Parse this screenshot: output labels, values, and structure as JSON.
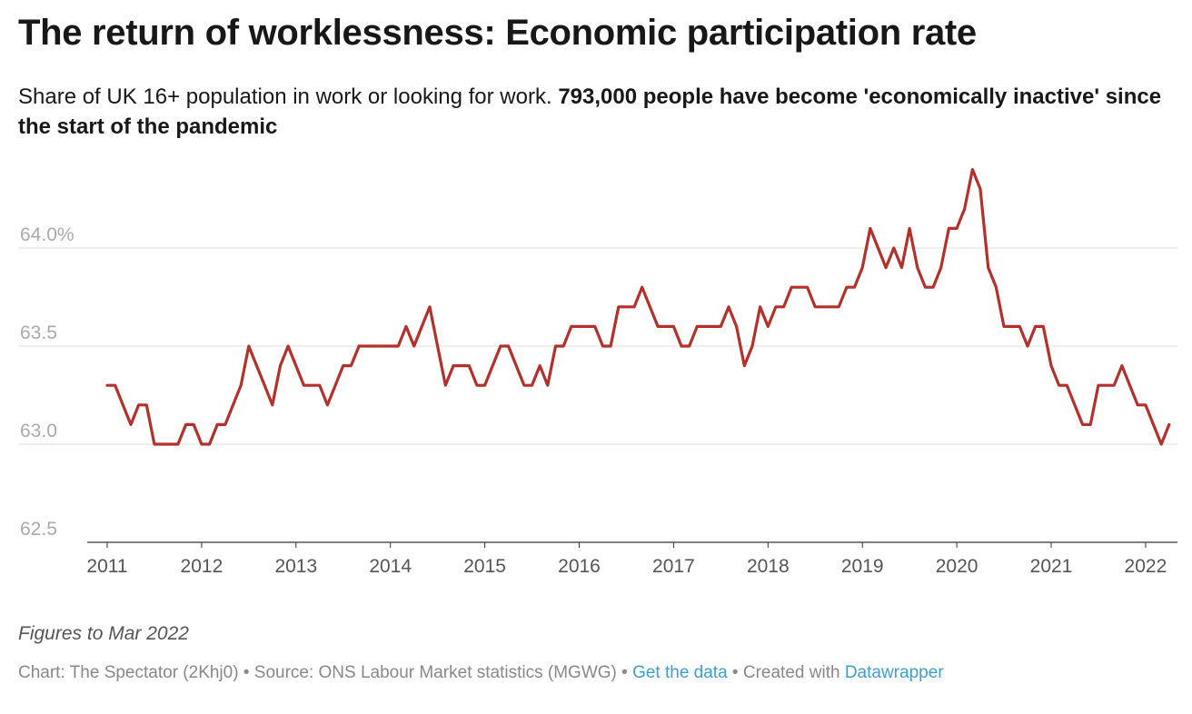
{
  "header": {
    "title": "The return of worklessness: Economic participation rate",
    "subtitle_plain": "Share of UK 16+ population in work or looking for work. ",
    "subtitle_bold": "793,000 people have become 'economically inactive' since the start of the pandemic"
  },
  "notes": "Figures to Mar 2022",
  "footer": {
    "chart_by": "Chart: The Spectator (2Khj0)",
    "sep1": " • ",
    "source": "Source: ONS Labour Market statistics (MGWG)",
    "sep2": " • ",
    "get_data": "Get the data",
    "sep3": " • ",
    "created_with": "Created with ",
    "datawrapper": "Datawrapper"
  },
  "colors": {
    "line": "#b3302b",
    "grid": "#e2e2e2",
    "tick": "#aaaaaa",
    "xtick": "#555555"
  },
  "chart_data": {
    "type": "line",
    "title": "The return of worklessness: Economic participation rate",
    "xlabel": "",
    "ylabel": "",
    "ylim": [
      62.5,
      64.5
    ],
    "yticks": [
      62.5,
      63.0,
      63.5,
      64.0
    ],
    "ytick_labels": [
      "62.5",
      "63.0",
      "63.5",
      "64.0%"
    ],
    "xlim": [
      2011,
      2022.25
    ],
    "xticks": [
      2011,
      2012,
      2013,
      2014,
      2015,
      2016,
      2017,
      2018,
      2019,
      2020,
      2021,
      2022
    ],
    "xtick_labels": [
      "2011",
      "2012",
      "2013",
      "2014",
      "2015",
      "2016",
      "2017",
      "2018",
      "2019",
      "2020",
      "2021",
      "2022"
    ],
    "series": [
      {
        "name": "Economic participation rate",
        "start_year": 2011.0,
        "step": 0.08333,
        "values": [
          63.3,
          63.3,
          63.2,
          63.1,
          63.2,
          63.2,
          63.0,
          63.0,
          63.0,
          63.0,
          63.1,
          63.1,
          63.0,
          63.0,
          63.1,
          63.1,
          63.2,
          63.3,
          63.5,
          63.4,
          63.3,
          63.2,
          63.4,
          63.5,
          63.4,
          63.3,
          63.3,
          63.3,
          63.2,
          63.3,
          63.4,
          63.4,
          63.5,
          63.5,
          63.5,
          63.5,
          63.5,
          63.5,
          63.6,
          63.5,
          63.6,
          63.7,
          63.5,
          63.3,
          63.4,
          63.4,
          63.4,
          63.3,
          63.3,
          63.4,
          63.5,
          63.5,
          63.4,
          63.3,
          63.3,
          63.4,
          63.3,
          63.5,
          63.5,
          63.6,
          63.6,
          63.6,
          63.6,
          63.5,
          63.5,
          63.7,
          63.7,
          63.7,
          63.8,
          63.7,
          63.6,
          63.6,
          63.6,
          63.5,
          63.5,
          63.6,
          63.6,
          63.6,
          63.6,
          63.7,
          63.6,
          63.4,
          63.5,
          63.7,
          63.6,
          63.7,
          63.7,
          63.8,
          63.8,
          63.8,
          63.7,
          63.7,
          63.7,
          63.7,
          63.8,
          63.8,
          63.9,
          64.1,
          64.0,
          63.9,
          64.0,
          63.9,
          64.1,
          63.9,
          63.8,
          63.8,
          63.9,
          64.1,
          64.1,
          64.2,
          64.4,
          64.3,
          63.9,
          63.8,
          63.6,
          63.6,
          63.6,
          63.5,
          63.6,
          63.6,
          63.4,
          63.3,
          63.3,
          63.2,
          63.1,
          63.1,
          63.3,
          63.3,
          63.3,
          63.4,
          63.3,
          63.2,
          63.2,
          63.1,
          63.0,
          63.1
        ]
      }
    ]
  }
}
